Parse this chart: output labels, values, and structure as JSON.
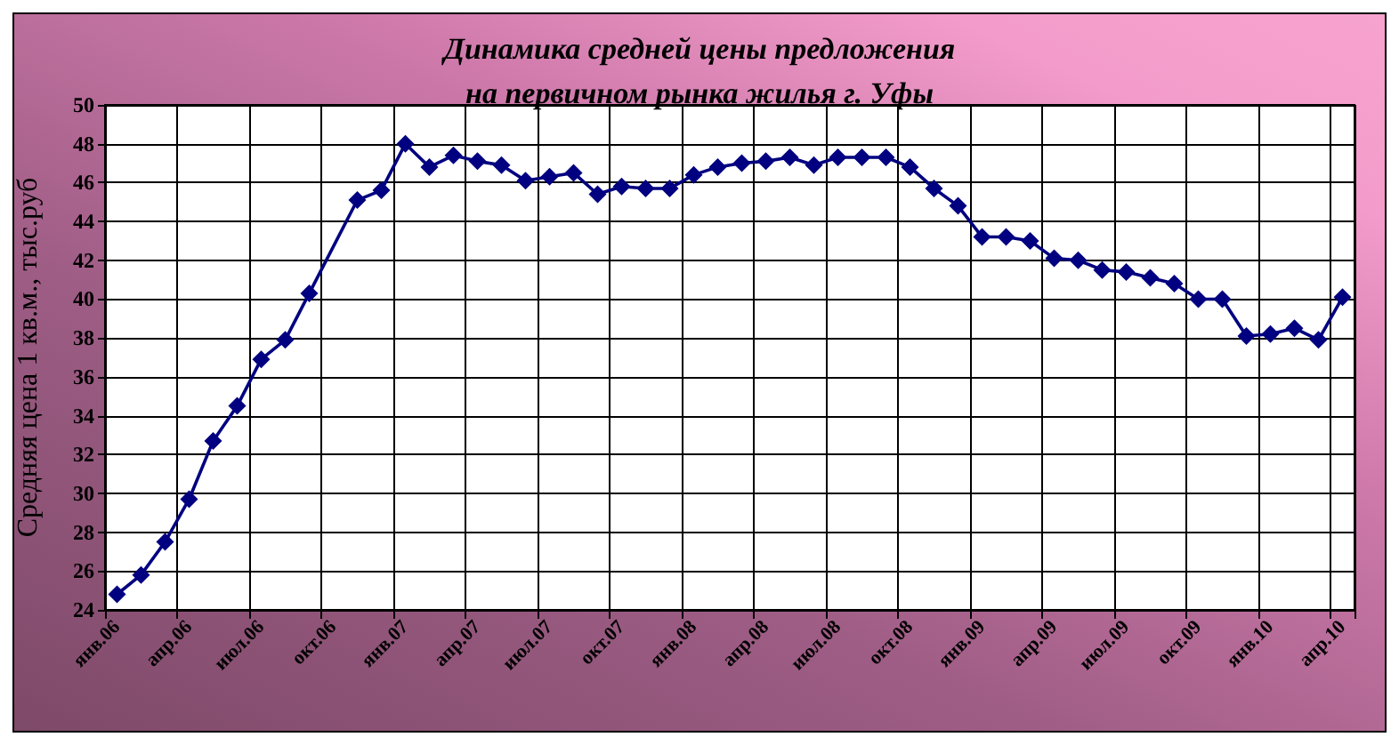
{
  "chart_data": {
    "type": "line",
    "title": "Динамика средней цены предложения\nна первичном рынка жилья г. Уфы",
    "ylabel": "Средняя цена 1 кв.м., тыс.руб",
    "categories": [
      "янв.06",
      null,
      null,
      "апр.06",
      null,
      null,
      "июл.06",
      null,
      null,
      "окт.06",
      null,
      null,
      "янв.07",
      null,
      null,
      "апр.07",
      null,
      null,
      "июл.07",
      null,
      null,
      "окт.07",
      null,
      null,
      "янв.08",
      null,
      null,
      "апр.08",
      null,
      null,
      "июл.08",
      null,
      null,
      "окт.08",
      null,
      null,
      "янв.09",
      null,
      null,
      "апр.09",
      null,
      null,
      "июл.09",
      null,
      null,
      "окт.09",
      null,
      null,
      "янв.10",
      null,
      null,
      "апр.10"
    ],
    "series": [
      {
        "color": "#000080",
        "values": [
          24.8,
          25.8,
          27.5,
          29.7,
          32.7,
          34.5,
          36.9,
          37.9,
          40.3,
          null,
          45.1,
          45.6,
          48.0,
          46.8,
          47.4,
          47.1,
          46.9,
          46.1,
          46.3,
          46.5,
          45.4,
          45.8,
          45.7,
          45.7,
          46.4,
          46.8,
          47.0,
          47.1,
          47.3,
          46.9,
          47.3,
          47.3,
          47.3,
          46.8,
          45.7,
          44.8,
          43.2,
          43.2,
          43.0,
          42.1,
          42.0,
          41.5,
          41.4,
          41.1,
          40.8,
          40.0,
          40.0,
          38.1,
          38.2,
          38.5,
          37.9,
          40.1
        ]
      }
    ],
    "ylim": [
      24,
      50
    ],
    "yticks": [
      24,
      26,
      28,
      30,
      32,
      34,
      36,
      38,
      40,
      42,
      44,
      46,
      48,
      50
    ],
    "grid": true,
    "marker": "diamond",
    "line_style": "solid"
  }
}
